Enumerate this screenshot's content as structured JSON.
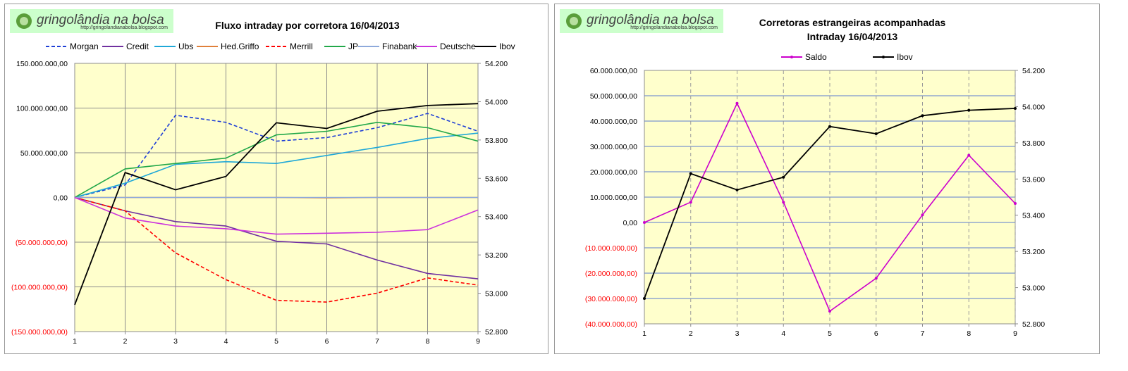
{
  "logo": {
    "name": "gringolândia na bolsa",
    "url": "http://gringolandianabolsa.blogspot.com"
  },
  "colors": {
    "plot_bg": "#ffffcc",
    "grid": "#8c8c8c",
    "negative_label": "#ff0000",
    "logo_bar": "#ccffcc",
    "logo_circle": "#5a9e3a"
  },
  "chart_data": [
    {
      "type": "line",
      "title": "Fluxo intraday por corretora  16/04/2013",
      "x": [
        1,
        2,
        3,
        4,
        5,
        6,
        7,
        8,
        9
      ],
      "y_left_ticks": [
        "150.000.000,00",
        "100.000.000,00",
        "50.000.000,00",
        "0,00",
        "(50.000.000,00)",
        "(100.000.000,00)",
        "(150.000.000,00)"
      ],
      "y_right_ticks": [
        "54.200",
        "54.000",
        "53.800",
        "53.600",
        "53.400",
        "53.200",
        "53.000",
        "52.800"
      ],
      "ylim_left": [
        -150000000,
        150000000
      ],
      "ylim_right": [
        52800,
        54200
      ],
      "grid": true,
      "legend_position": "top",
      "series": [
        {
          "name": "Morgan",
          "color": "#1f3fd6",
          "dash": true,
          "axis": "left",
          "values": [
            0,
            14000000,
            92000000,
            84000000,
            63000000,
            67000000,
            78000000,
            94000000,
            74000000
          ]
        },
        {
          "name": "Credit",
          "color": "#7030a0",
          "dash": false,
          "axis": "left",
          "values": [
            0,
            -15000000,
            -27000000,
            -32000000,
            -49000000,
            -52000000,
            -70000000,
            -85000000,
            -91000000
          ]
        },
        {
          "name": "Ubs",
          "color": "#1fa8d8",
          "dash": false,
          "axis": "left",
          "values": [
            0,
            16000000,
            37000000,
            40000000,
            38000000,
            47000000,
            56000000,
            66000000,
            72000000
          ]
        },
        {
          "name": "Hed.Griffo",
          "color": "#e0803a",
          "dash": false,
          "axis": "left",
          "values": [
            0,
            0,
            0,
            0,
            0,
            -500000,
            0,
            0,
            0
          ]
        },
        {
          "name": "Merrill",
          "color": "#ff0000",
          "dash": true,
          "axis": "left",
          "values": [
            0,
            -15000000,
            -62000000,
            -92000000,
            -115000000,
            -117000000,
            -107000000,
            -90000000,
            -98000000
          ]
        },
        {
          "name": "JP",
          "color": "#22a84a",
          "dash": false,
          "axis": "left",
          "values": [
            0,
            32000000,
            38000000,
            44000000,
            70000000,
            74000000,
            84000000,
            78000000,
            63000000
          ]
        },
        {
          "name": "Finabank",
          "color": "#8ea9db",
          "dash": false,
          "axis": "left",
          "values": [
            0,
            0,
            0,
            0,
            0,
            0,
            0,
            0,
            0
          ]
        },
        {
          "name": "Deutsche",
          "color": "#cc33dd",
          "dash": false,
          "axis": "left",
          "values": [
            0,
            -23000000,
            -32000000,
            -35000000,
            -41000000,
            -40000000,
            -39000000,
            -36000000,
            -14000000
          ]
        },
        {
          "name": "Ibov",
          "color": "#000000",
          "dash": false,
          "axis": "right",
          "values": [
            52940,
            53630,
            53540,
            53610,
            53890,
            53860,
            53950,
            53980,
            53990
          ]
        }
      ]
    },
    {
      "type": "line",
      "title": "Corretoras estrangeiras acompanhadas",
      "subtitle": "Intraday  16/04/2013",
      "x": [
        1,
        2,
        3,
        4,
        5,
        6,
        7,
        8,
        9
      ],
      "y_left_ticks": [
        "60.000.000,00",
        "50.000.000,00",
        "40.000.000,00",
        "30.000.000,00",
        "20.000.000,00",
        "10.000.000,00",
        "0,00",
        "(10.000.000,00)",
        "(20.000.000,00)",
        "(30.000.000,00)",
        "(40.000.000,00)"
      ],
      "y_right_ticks": [
        "54.200",
        "54.000",
        "53.800",
        "53.600",
        "53.400",
        "53.200",
        "53.000",
        "52.800"
      ],
      "ylim_left": [
        -40000000,
        60000000
      ],
      "ylim_right": [
        52800,
        54200
      ],
      "grid": true,
      "legend_position": "top",
      "series": [
        {
          "name": "Saldo",
          "color": "#cc00cc",
          "dash": false,
          "axis": "left",
          "markers": true,
          "values": [
            0,
            8000000,
            47000000,
            8000000,
            -35000000,
            -22000000,
            3000000,
            26500000,
            7500000
          ]
        },
        {
          "name": "Ibov",
          "color": "#000000",
          "dash": false,
          "axis": "right",
          "markers": true,
          "values": [
            52940,
            53630,
            53540,
            53610,
            53890,
            53850,
            53950,
            53980,
            53990
          ]
        }
      ]
    }
  ]
}
